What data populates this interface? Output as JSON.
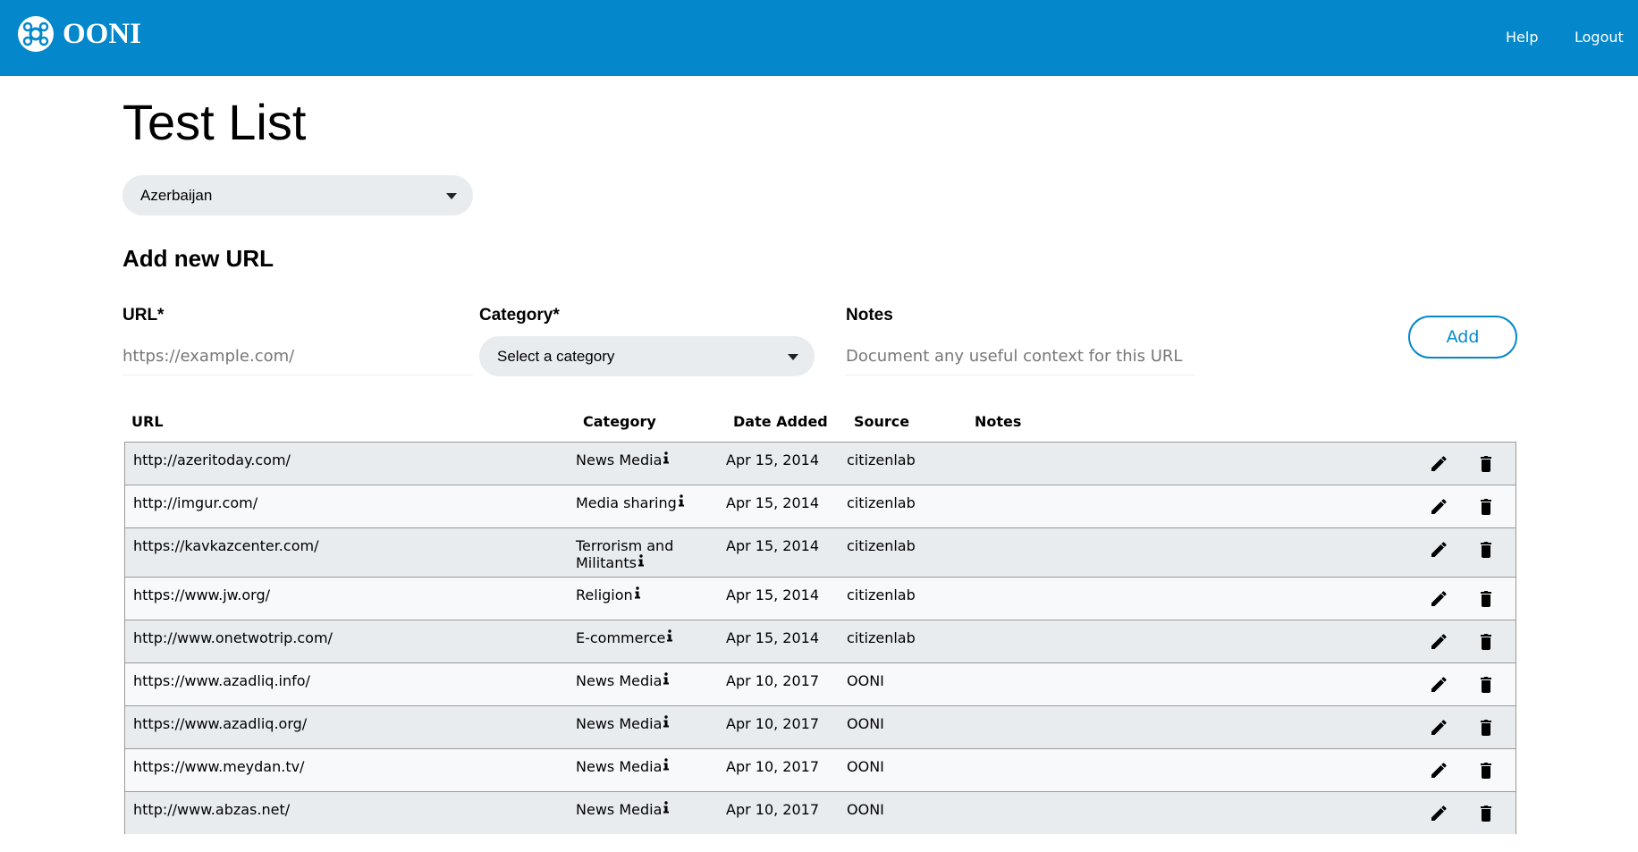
{
  "header": {
    "logo": "OONI",
    "nav": [
      "Help",
      "Logout"
    ]
  },
  "title": "Test List",
  "country_select": "Azerbaijan",
  "add_form": {
    "heading": "Add new URL",
    "fields": [
      {
        "label": "URL*",
        "placeholder": "https://example.com/"
      },
      {
        "label": "Category*",
        "placeholder": "Select a category"
      },
      {
        "label": "Notes",
        "placeholder": "Document any useful context for this URL"
      }
    ],
    "button": "Add"
  },
  "table": {
    "columns": [
      "URL",
      "Category",
      "Date Added",
      "Source",
      "Notes"
    ],
    "rows": [
      [
        "http://azeritoday.com/",
        "News Media",
        "Apr 15, 2014",
        "citizenlab",
        ""
      ],
      [
        "http://imgur.com/",
        "Media sharing",
        "Apr 15, 2014",
        "citizenlab",
        ""
      ],
      [
        "https://kavkazcenter.com/",
        "Terrorism and Militants",
        "Apr 15, 2014",
        "citizenlab",
        ""
      ],
      [
        "https://www.jw.org/",
        "Religion",
        "Apr 15, 2014",
        "citizenlab",
        ""
      ],
      [
        "http://www.onetwotrip.com/",
        "E-commerce",
        "Apr 15, 2014",
        "citizenlab",
        ""
      ],
      [
        "https://www.azadliq.info/",
        "News Media",
        "Apr 10, 2017",
        "OONI",
        ""
      ],
      [
        "https://www.azadliq.org/",
        "News Media",
        "Apr 10, 2017",
        "OONI",
        ""
      ],
      [
        "https://www.meydan.tv/",
        "News Media",
        "Apr 10, 2017",
        "OONI",
        ""
      ],
      [
        "http://www.abzas.net/",
        "News Media",
        "Apr 10, 2017",
        "OONI",
        ""
      ]
    ]
  }
}
